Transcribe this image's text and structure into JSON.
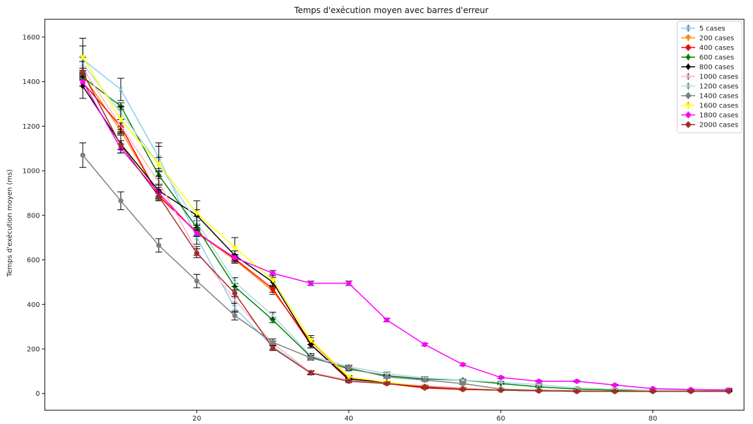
{
  "chart_data": {
    "type": "line",
    "title": "Temps d'exécution moyen avec barres d'erreur",
    "xlabel": "",
    "ylabel": "Temps d'exécution moyen (ms)",
    "xlim": [
      0,
      92
    ],
    "ylim": [
      -75,
      1680
    ],
    "xticks": [
      20,
      40,
      60,
      80
    ],
    "yticks": [
      0,
      200,
      400,
      600,
      800,
      1000,
      1200,
      1400,
      1600
    ],
    "grid": false,
    "legend_position": "top-right",
    "x": [
      5,
      10,
      15,
      20,
      25,
      30,
      35,
      40,
      45,
      50,
      55,
      60,
      65,
      70,
      75,
      80,
      85,
      90
    ],
    "series": [
      {
        "name": "5 cases",
        "color": "#87ceeb",
        "marker": "x",
        "values": [
          1500,
          1365,
          1060,
          700,
          385,
          210,
          95,
          60,
          45,
          35,
          25,
          15,
          12,
          10,
          10,
          12,
          12,
          20
        ],
        "errors": [
          60,
          50,
          50,
          30,
          20,
          12,
          8,
          6,
          4,
          3,
          3,
          2,
          2,
          2,
          2,
          2,
          2,
          2
        ]
      },
      {
        "name": "200 cases",
        "color": "#ff8c00",
        "marker": "v",
        "values": [
          1430,
          1180,
          890,
          720,
          600,
          460,
          235,
          70,
          45,
          25,
          18,
          15,
          12,
          10,
          10,
          10,
          10,
          10
        ],
        "errors": [
          15,
          15,
          15,
          15,
          15,
          15,
          15,
          8,
          4,
          3,
          2,
          2,
          2,
          2,
          2,
          2,
          2,
          2
        ]
      },
      {
        "name": "400 cases",
        "color": "#ff0000",
        "marker": "o",
        "values": [
          1395,
          1200,
          885,
          725,
          605,
          470,
          220,
          60,
          45,
          25,
          18,
          15,
          12,
          10,
          10,
          10,
          10,
          10
        ],
        "errors": [
          15,
          15,
          15,
          15,
          15,
          15,
          15,
          6,
          4,
          3,
          2,
          2,
          2,
          2,
          2,
          2,
          2,
          2
        ]
      },
      {
        "name": "600 cases",
        "color": "#008000",
        "marker": "D",
        "values": [
          1420,
          1290,
          980,
          745,
          480,
          330,
          165,
          110,
          80,
          65,
          60,
          45,
          30,
          20,
          15,
          12,
          12,
          12
        ],
        "errors": [
          15,
          15,
          15,
          15,
          15,
          12,
          10,
          8,
          6,
          5,
          4,
          4,
          3,
          2,
          2,
          2,
          2,
          2
        ]
      },
      {
        "name": "800 cases",
        "color": "#000000",
        "marker": "D",
        "values": [
          1380,
          1120,
          910,
          800,
          620,
          500,
          220,
          65,
          50,
          30,
          20,
          15,
          12,
          10,
          10,
          10,
          10,
          10
        ],
        "errors": [
          55,
          40,
          30,
          25,
          20,
          20,
          15,
          6,
          4,
          3,
          2,
          2,
          2,
          2,
          2,
          2,
          2,
          2
        ]
      },
      {
        "name": "1000 cases",
        "color": "#ffb6c1",
        "marker": "x",
        "values": [
          1460,
          1200,
          950,
          640,
          420,
          225,
          95,
          60,
          45,
          35,
          25,
          15,
          12,
          10,
          10,
          12,
          12,
          15
        ],
        "errors": [
          30,
          30,
          25,
          20,
          15,
          10,
          8,
          6,
          4,
          3,
          3,
          2,
          2,
          2,
          2,
          2,
          2,
          2
        ]
      },
      {
        "name": "1200 cases",
        "color": "#add8e6",
        "marker": "x",
        "values": [
          1480,
          1260,
          1030,
          770,
          500,
          350,
          170,
          120,
          90,
          70,
          60,
          50,
          40,
          25,
          20,
          15,
          15,
          20
        ],
        "errors": [
          30,
          30,
          30,
          25,
          20,
          15,
          10,
          8,
          6,
          5,
          4,
          4,
          3,
          2,
          2,
          2,
          2,
          2
        ]
      },
      {
        "name": "1400 cases",
        "color": "#808080",
        "marker": "o",
        "values": [
          1070,
          865,
          665,
          505,
          350,
          230,
          160,
          115,
          75,
          60,
          45,
          20,
          15,
          12,
          10,
          10,
          10,
          15
        ],
        "errors": [
          55,
          40,
          30,
          30,
          20,
          15,
          10,
          8,
          6,
          5,
          4,
          3,
          2,
          2,
          2,
          2,
          2,
          2
        ]
      },
      {
        "name": "1600 cases",
        "color": "#ffff00",
        "marker": "v",
        "values": [
          1510,
          1230,
          1030,
          810,
          655,
          510,
          240,
          75,
          50,
          30,
          20,
          15,
          12,
          10,
          10,
          10,
          10,
          10
        ],
        "errors": [
          85,
          55,
          95,
          55,
          45,
          25,
          20,
          6,
          4,
          3,
          2,
          2,
          2,
          2,
          2,
          2,
          2,
          2
        ]
      },
      {
        "name": "1800 cases",
        "color": "#ff00ff",
        "marker": "o",
        "values": [
          1400,
          1100,
          900,
          720,
          610,
          540,
          495,
          495,
          330,
          220,
          130,
          72,
          55,
          55,
          38,
          22,
          18,
          15
        ],
        "errors": [
          20,
          20,
          15,
          15,
          15,
          12,
          10,
          10,
          8,
          6,
          5,
          4,
          3,
          3,
          3,
          2,
          2,
          2
        ]
      },
      {
        "name": "2000 cases",
        "color": "#a52a2a",
        "marker": "o",
        "values": [
          1440,
          1115,
          885,
          630,
          450,
          205,
          92,
          55,
          45,
          30,
          20,
          15,
          12,
          10,
          10,
          10,
          10,
          10
        ],
        "errors": [
          20,
          20,
          20,
          20,
          15,
          12,
          8,
          6,
          4,
          3,
          2,
          2,
          2,
          2,
          2,
          2,
          2,
          2
        ]
      }
    ]
  }
}
